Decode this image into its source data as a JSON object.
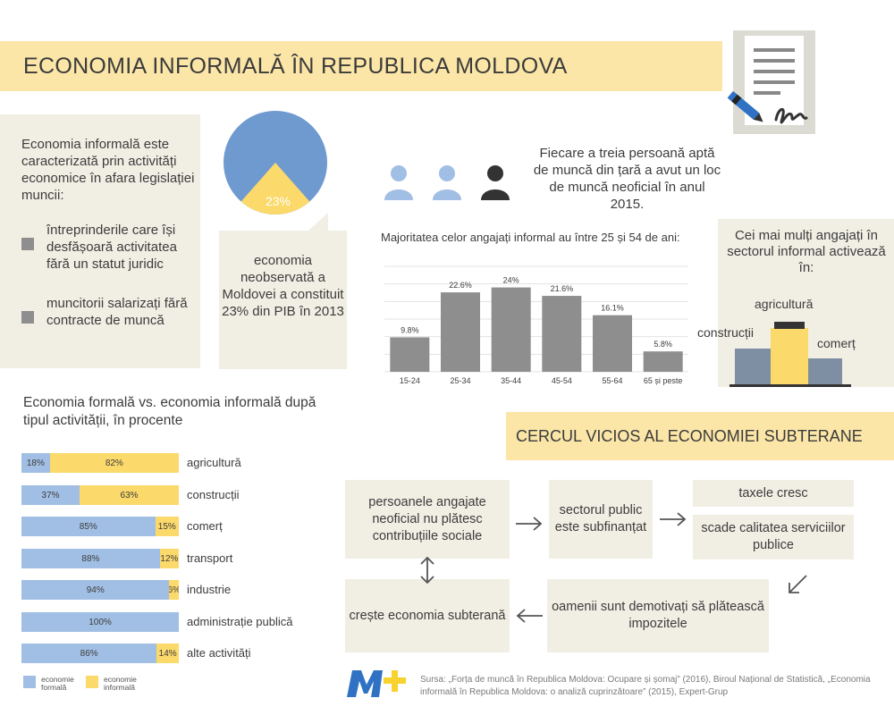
{
  "title": "ECONOMIA INFORMALĂ ÎN REPUBLICA MOLDOVA",
  "definition": {
    "intro": "Economia informală este caracterizată prin activități economice în afara legislației muncii:",
    "bullets": [
      "întreprinderile care își desfășoară activitatea fără un statut juridic",
      "muncitorii salarizați fără contracte de muncă"
    ]
  },
  "pie": {
    "percent_label": "23%",
    "share": 0.23,
    "note": "economia neobservată a Moldovei a constituit 23% din PIB în 2013",
    "colors": {
      "main": "#6f9ad0",
      "slice": "#fbd96a"
    }
  },
  "persons": {
    "text": "Fiecare a treia persoană aptă de muncă din țară a avut un loc de muncă neoficial în anul 2015.",
    "icons": [
      "person-icon",
      "person-icon",
      "person-icon"
    ],
    "colors": {
      "light": "#a1bfe4",
      "dark": "#333333"
    }
  },
  "age_chart": {
    "title": "Majoritatea celor angajați informal au între 25 și 54 de ani:",
    "chart_data": {
      "type": "bar",
      "categories": [
        "15-24",
        "25-34",
        "35-44",
        "45-54",
        "55-64",
        "65 și peste"
      ],
      "values": [
        9.8,
        22.6,
        24,
        21.6,
        16.1,
        5.8
      ],
      "value_labels": [
        "9.8%",
        "22.6%",
        "24%",
        "21.6%",
        "16.1%",
        "5.8%"
      ],
      "ylim": [
        0,
        30
      ],
      "grid": true,
      "bar_color": "#8e8e8e"
    }
  },
  "sectors": {
    "title": "Cei mai mulți angajați în sectorul informal activează în:",
    "agri": "agricultură",
    "constr": "construcții",
    "comert": "comerț",
    "colors": {
      "left": "#7f8fa3",
      "mid": "#fbd96a",
      "right": "#7f8fa3"
    }
  },
  "formal_informal": {
    "title": "Economia formală vs. economia informală după tipul activității, în procente",
    "rows": [
      {
        "label": "agricultură",
        "formal": 18,
        "informal": 82,
        "formal_label": "18%",
        "informal_label": "82%"
      },
      {
        "label": "construcții",
        "formal": 37,
        "informal": 63,
        "formal_label": "37%",
        "informal_label": "63%"
      },
      {
        "label": "comerț",
        "formal": 85,
        "informal": 15,
        "formal_label": "85%",
        "informal_label": "15%"
      },
      {
        "label": "transport",
        "formal": 88,
        "informal": 12,
        "formal_label": "88%",
        "informal_label": "12%"
      },
      {
        "label": "industrie",
        "formal": 94,
        "informal": 6,
        "formal_label": "94%",
        "informal_label": "6%"
      },
      {
        "label": "administrație publică",
        "formal": 100,
        "informal": 0,
        "formal_label": "100%",
        "informal_label": ""
      },
      {
        "label": "alte activități",
        "formal": 86,
        "informal": 14,
        "formal_label": "86%",
        "informal_label": "14%"
      }
    ],
    "legend": {
      "formal": "economie formală",
      "informal": "economie informală"
    },
    "colors": {
      "formal": "#a1bfe4",
      "informal": "#fbd96a"
    }
  },
  "vicious_circle": {
    "title": "CERCUL VICIOS AL ECONOMIEI SUBTERANE",
    "box1": "persoanele angajate neoficial nu plătesc contribuțiile sociale",
    "box2": "sectorul public este subfinanțat",
    "box3": "taxele cresc",
    "box4": "scade calitatea serviciilor publice",
    "box5": "oamenii sunt demotivați să plătească impozitele",
    "box6": "crește economia subterană"
  },
  "source": "Sursa: „Forța de muncă în Republica Moldova: Ocupare și șomaj” (2016), Biroul Național de Statistică, „Economia informală în Republica Moldova: o analiză cuprinzătoare” (2015), Expert-Grup",
  "logo": {
    "icon": "m-plus-logo",
    "colors": {
      "m": "#2f72c4",
      "plus": "#f8d22e"
    }
  }
}
